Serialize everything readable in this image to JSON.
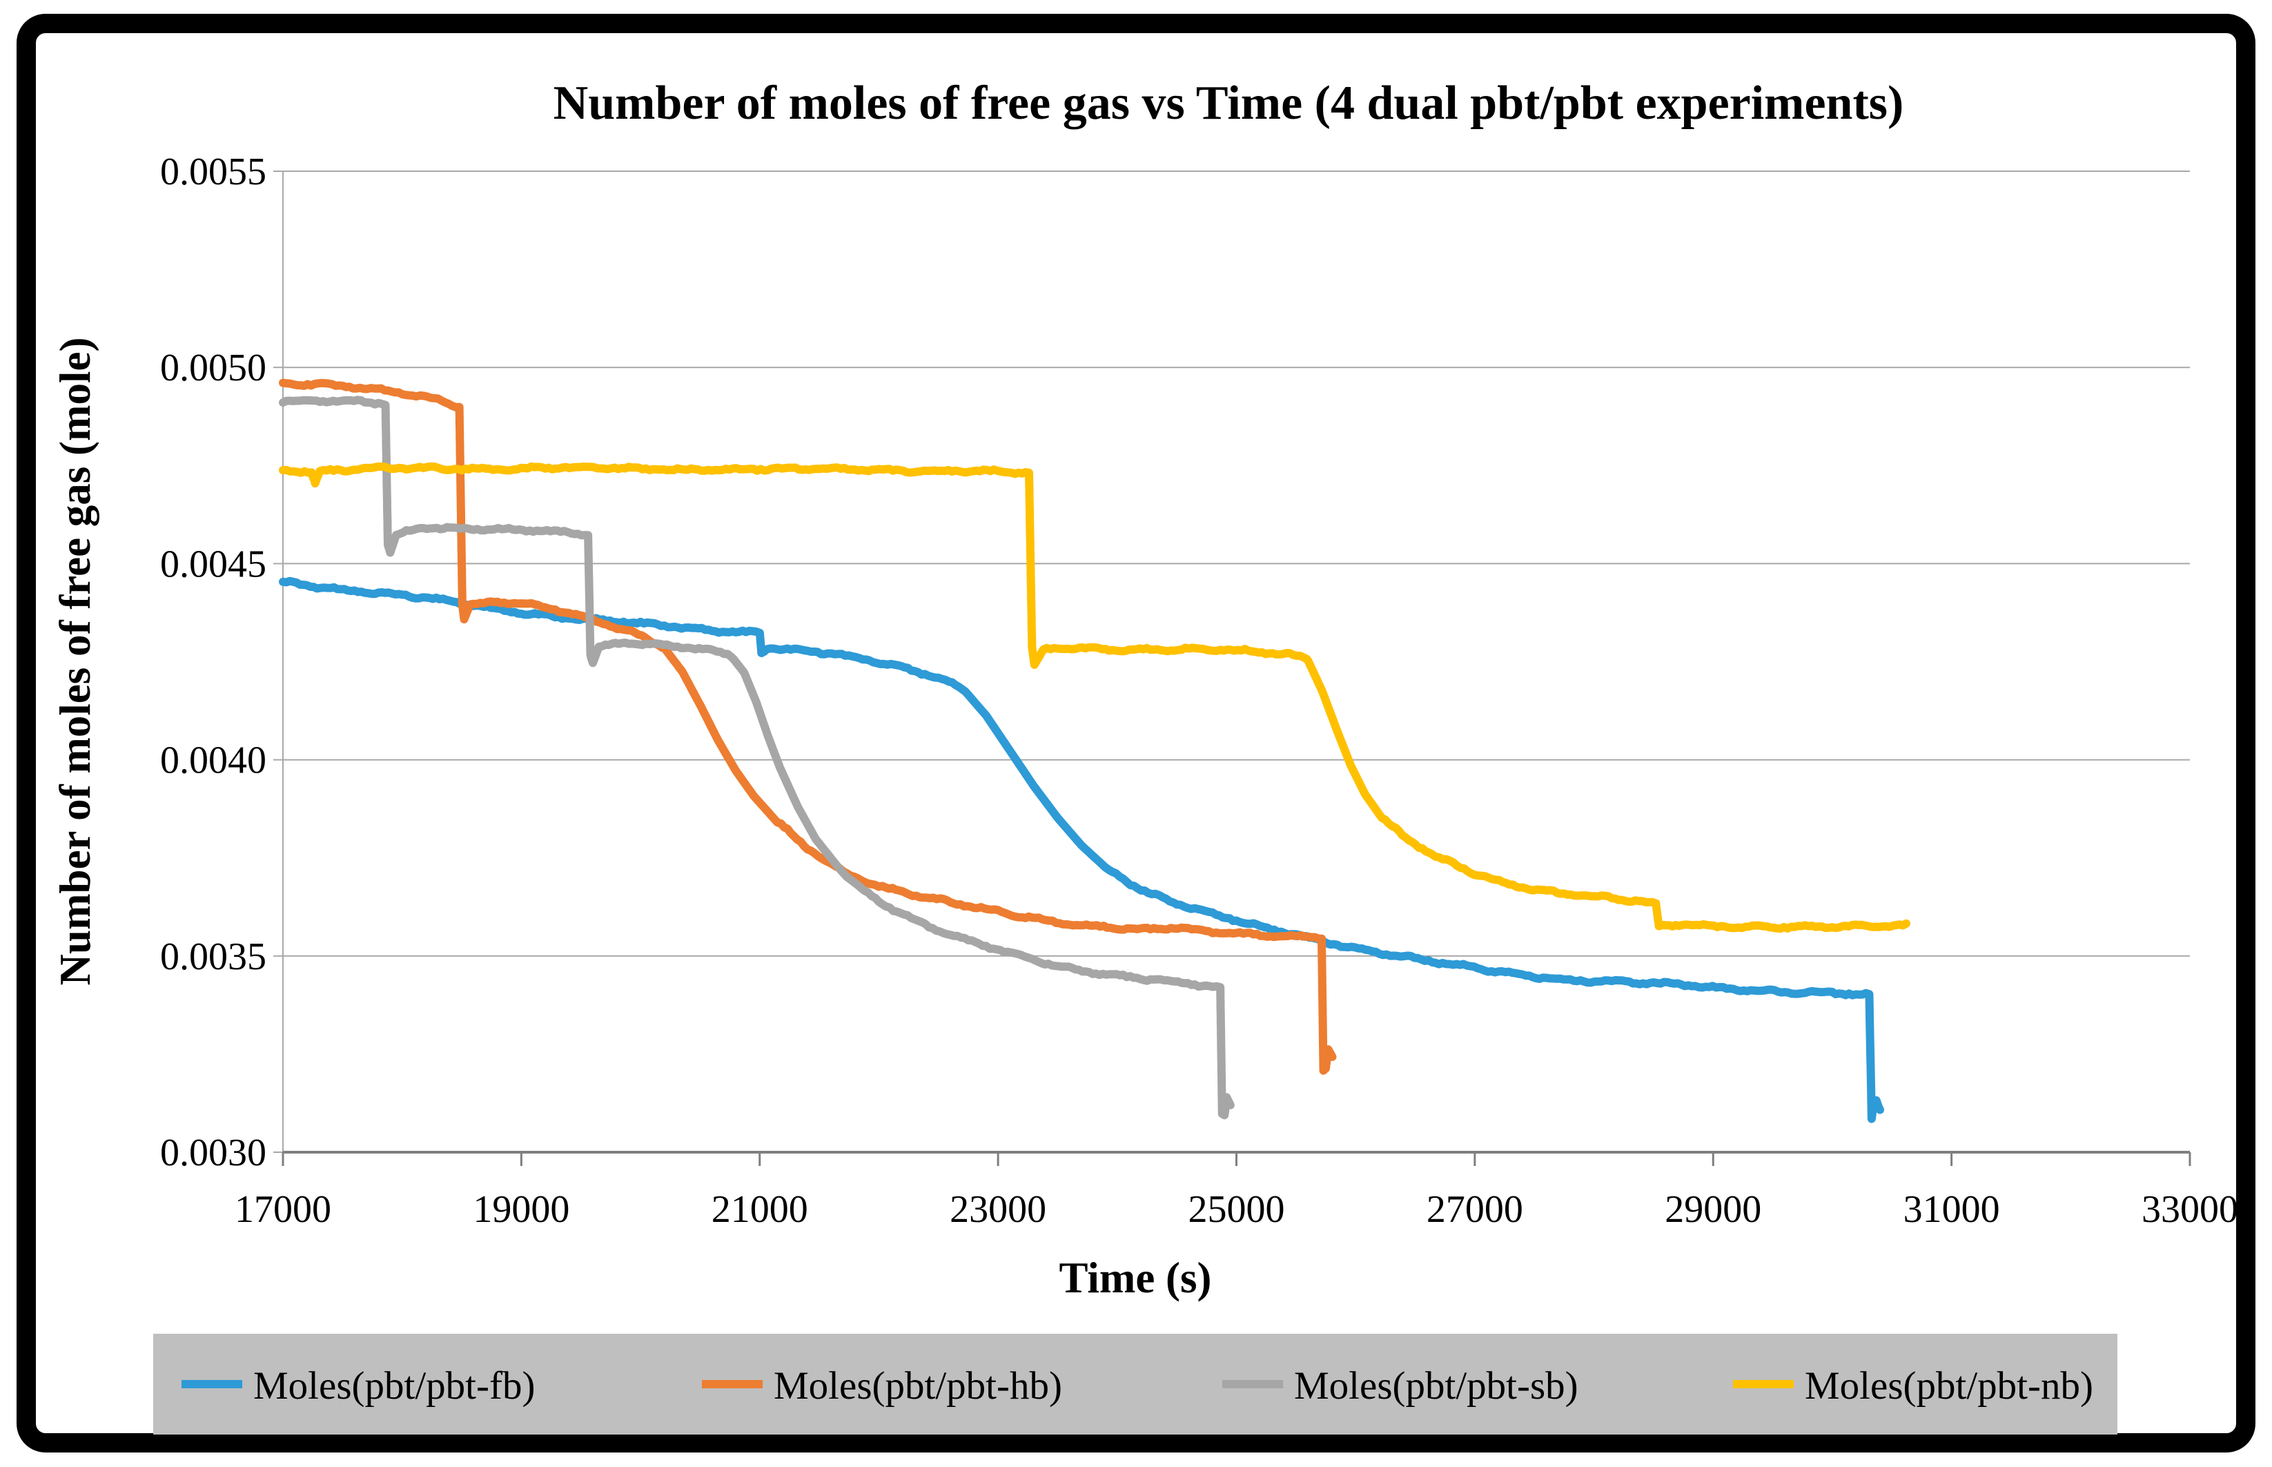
{
  "page": {
    "background_color": "#ffffff",
    "frame_color": "#000000"
  },
  "chart_data": {
    "type": "line",
    "title": "Number of moles of free gas vs Time (4 dual pbt/pbt experiments)",
    "xlabel": "Time (s)",
    "ylabel": "Number of  moles of free gas (mole)",
    "grid": true,
    "legend_position": "bottom",
    "legend_background": "#BFBFBF",
    "x_axis": {
      "min": 17000,
      "max": 33000,
      "step": 2000,
      "tick_labels": [
        "17000",
        "19000",
        "21000",
        "23000",
        "25000",
        "27000",
        "29000",
        "31000",
        "33000"
      ]
    },
    "y_axis": {
      "min": 0.003,
      "max": 0.0055,
      "step": 0.0005,
      "tick_labels": [
        "0.0030",
        "0.0035",
        "0.0040",
        "0.0045",
        "0.0050",
        "0.0055"
      ]
    },
    "series": [
      {
        "name": "Moles(pbt/pbt-fb)",
        "color": "#2E9AD6",
        "points": [
          [
            17000,
            0.004455
          ],
          [
            17600,
            0.004432
          ],
          [
            18200,
            0.00441
          ],
          [
            18800,
            0.004386
          ],
          [
            19400,
            0.004362
          ],
          [
            20000,
            0.004345
          ],
          [
            20600,
            0.004332
          ],
          [
            21000,
            0.004326
          ],
          [
            21015,
            0.004272
          ],
          [
            21060,
            0.004287
          ],
          [
            21600,
            0.004268
          ],
          [
            22100,
            0.004243
          ],
          [
            22500,
            0.004213
          ],
          [
            22700,
            0.004183
          ],
          [
            22900,
            0.004113
          ],
          [
            23100,
            0.004023
          ],
          [
            23300,
            0.003933
          ],
          [
            23500,
            0.003852
          ],
          [
            23700,
            0.003782
          ],
          [
            23900,
            0.003726
          ],
          [
            24200,
            0.003671
          ],
          [
            24500,
            0.003636
          ],
          [
            24800,
            0.003606
          ],
          [
            25200,
            0.003572
          ],
          [
            25700,
            0.003541
          ],
          [
            26200,
            0.00351
          ],
          [
            26700,
            0.003481
          ],
          [
            27200,
            0.003459
          ],
          [
            27800,
            0.003441
          ],
          [
            28500,
            0.003428
          ],
          [
            29200,
            0.003417
          ],
          [
            30000,
            0.003405
          ],
          [
            30310,
            0.003398
          ],
          [
            30330,
            0.003085
          ],
          [
            30345,
            0.003122
          ],
          [
            30370,
            0.003128
          ],
          [
            30400,
            0.003108
          ]
        ]
      },
      {
        "name": "Moles(pbt/pbt-hb)",
        "color": "#ED7D31",
        "points": [
          [
            17000,
            0.00496
          ],
          [
            17500,
            0.00495
          ],
          [
            18000,
            0.004936
          ],
          [
            18300,
            0.004921
          ],
          [
            18480,
            0.004903
          ],
          [
            18505,
            0.004395
          ],
          [
            18520,
            0.004358
          ],
          [
            18570,
            0.004396
          ],
          [
            18800,
            0.004404
          ],
          [
            19200,
            0.004387
          ],
          [
            19600,
            0.004356
          ],
          [
            19950,
            0.004325
          ],
          [
            20180,
            0.004293
          ],
          [
            20350,
            0.004225
          ],
          [
            20500,
            0.00414
          ],
          [
            20650,
            0.00405
          ],
          [
            20800,
            0.003972
          ],
          [
            20950,
            0.003908
          ],
          [
            21150,
            0.00384
          ],
          [
            21400,
            0.003775
          ],
          [
            21700,
            0.003717
          ],
          [
            22000,
            0.00368
          ],
          [
            22400,
            0.003648
          ],
          [
            22800,
            0.003622
          ],
          [
            23200,
            0.003602
          ],
          [
            23600,
            0.003585
          ],
          [
            24000,
            0.003572
          ],
          [
            24250,
            0.003565
          ],
          [
            24450,
            0.00357
          ],
          [
            24800,
            0.003561
          ],
          [
            25200,
            0.003556
          ],
          [
            25600,
            0.003551
          ],
          [
            25715,
            0.003548
          ],
          [
            25730,
            0.003208
          ],
          [
            25750,
            0.003214
          ],
          [
            25770,
            0.003262
          ],
          [
            25805,
            0.003243
          ]
        ]
      },
      {
        "name": "Moles(pbt/pbt-sb)",
        "color": "#A6A6A6",
        "points": [
          [
            17000,
            0.004915
          ],
          [
            17450,
            0.004913
          ],
          [
            17860,
            0.004907
          ],
          [
            17880,
            0.004548
          ],
          [
            17900,
            0.004528
          ],
          [
            17950,
            0.004573
          ],
          [
            18150,
            0.004594
          ],
          [
            18600,
            0.004591
          ],
          [
            19100,
            0.004583
          ],
          [
            19560,
            0.004573
          ],
          [
            19580,
            0.004268
          ],
          [
            19600,
            0.004246
          ],
          [
            19650,
            0.004288
          ],
          [
            19900,
            0.004301
          ],
          [
            20250,
            0.004294
          ],
          [
            20550,
            0.004281
          ],
          [
            20760,
            0.004265
          ],
          [
            20870,
            0.004222
          ],
          [
            20970,
            0.004148
          ],
          [
            21070,
            0.00406
          ],
          [
            21170,
            0.00398
          ],
          [
            21320,
            0.00388
          ],
          [
            21470,
            0.003798
          ],
          [
            21670,
            0.003722
          ],
          [
            21880,
            0.003668
          ],
          [
            22150,
            0.003614
          ],
          [
            22450,
            0.00357
          ],
          [
            22750,
            0.003536
          ],
          [
            23050,
            0.00351
          ],
          [
            23450,
            0.003481
          ],
          [
            23850,
            0.003457
          ],
          [
            24250,
            0.003439
          ],
          [
            24650,
            0.003426
          ],
          [
            24865,
            0.003417
          ],
          [
            24880,
            0.003098
          ],
          [
            24900,
            0.003093
          ],
          [
            24918,
            0.00314
          ],
          [
            24950,
            0.00312
          ]
        ]
      },
      {
        "name": "Moles(pbt/pbt-nb)",
        "color": "#FFC000",
        "points": [
          [
            17000,
            0.00474
          ],
          [
            17240,
            0.004737
          ],
          [
            17270,
            0.004706
          ],
          [
            17310,
            0.004736
          ],
          [
            17800,
            0.004741
          ],
          [
            18500,
            0.004743
          ],
          [
            19200,
            0.004744
          ],
          [
            19900,
            0.004741
          ],
          [
            20600,
            0.004742
          ],
          [
            21300,
            0.004739
          ],
          [
            22000,
            0.00474
          ],
          [
            22700,
            0.004736
          ],
          [
            23260,
            0.004729
          ],
          [
            23285,
            0.004288
          ],
          [
            23305,
            0.004242
          ],
          [
            23380,
            0.004281
          ],
          [
            23650,
            0.004287
          ],
          [
            24100,
            0.004283
          ],
          [
            24600,
            0.00428
          ],
          [
            25100,
            0.004276
          ],
          [
            25450,
            0.00427
          ],
          [
            25590,
            0.00426
          ],
          [
            25720,
            0.004175
          ],
          [
            25850,
            0.00407
          ],
          [
            25960,
            0.003985
          ],
          [
            26080,
            0.003912
          ],
          [
            26220,
            0.003852
          ],
          [
            26420,
            0.003797
          ],
          [
            26670,
            0.003752
          ],
          [
            26970,
            0.003713
          ],
          [
            27320,
            0.003683
          ],
          [
            27720,
            0.003661
          ],
          [
            28120,
            0.003646
          ],
          [
            28520,
            0.003632
          ],
          [
            28545,
            0.003576
          ],
          [
            28800,
            0.003581
          ],
          [
            29300,
            0.003576
          ],
          [
            29800,
            0.003572
          ],
          [
            30250,
            0.003574
          ],
          [
            30620,
            0.00358
          ]
        ]
      }
    ]
  }
}
